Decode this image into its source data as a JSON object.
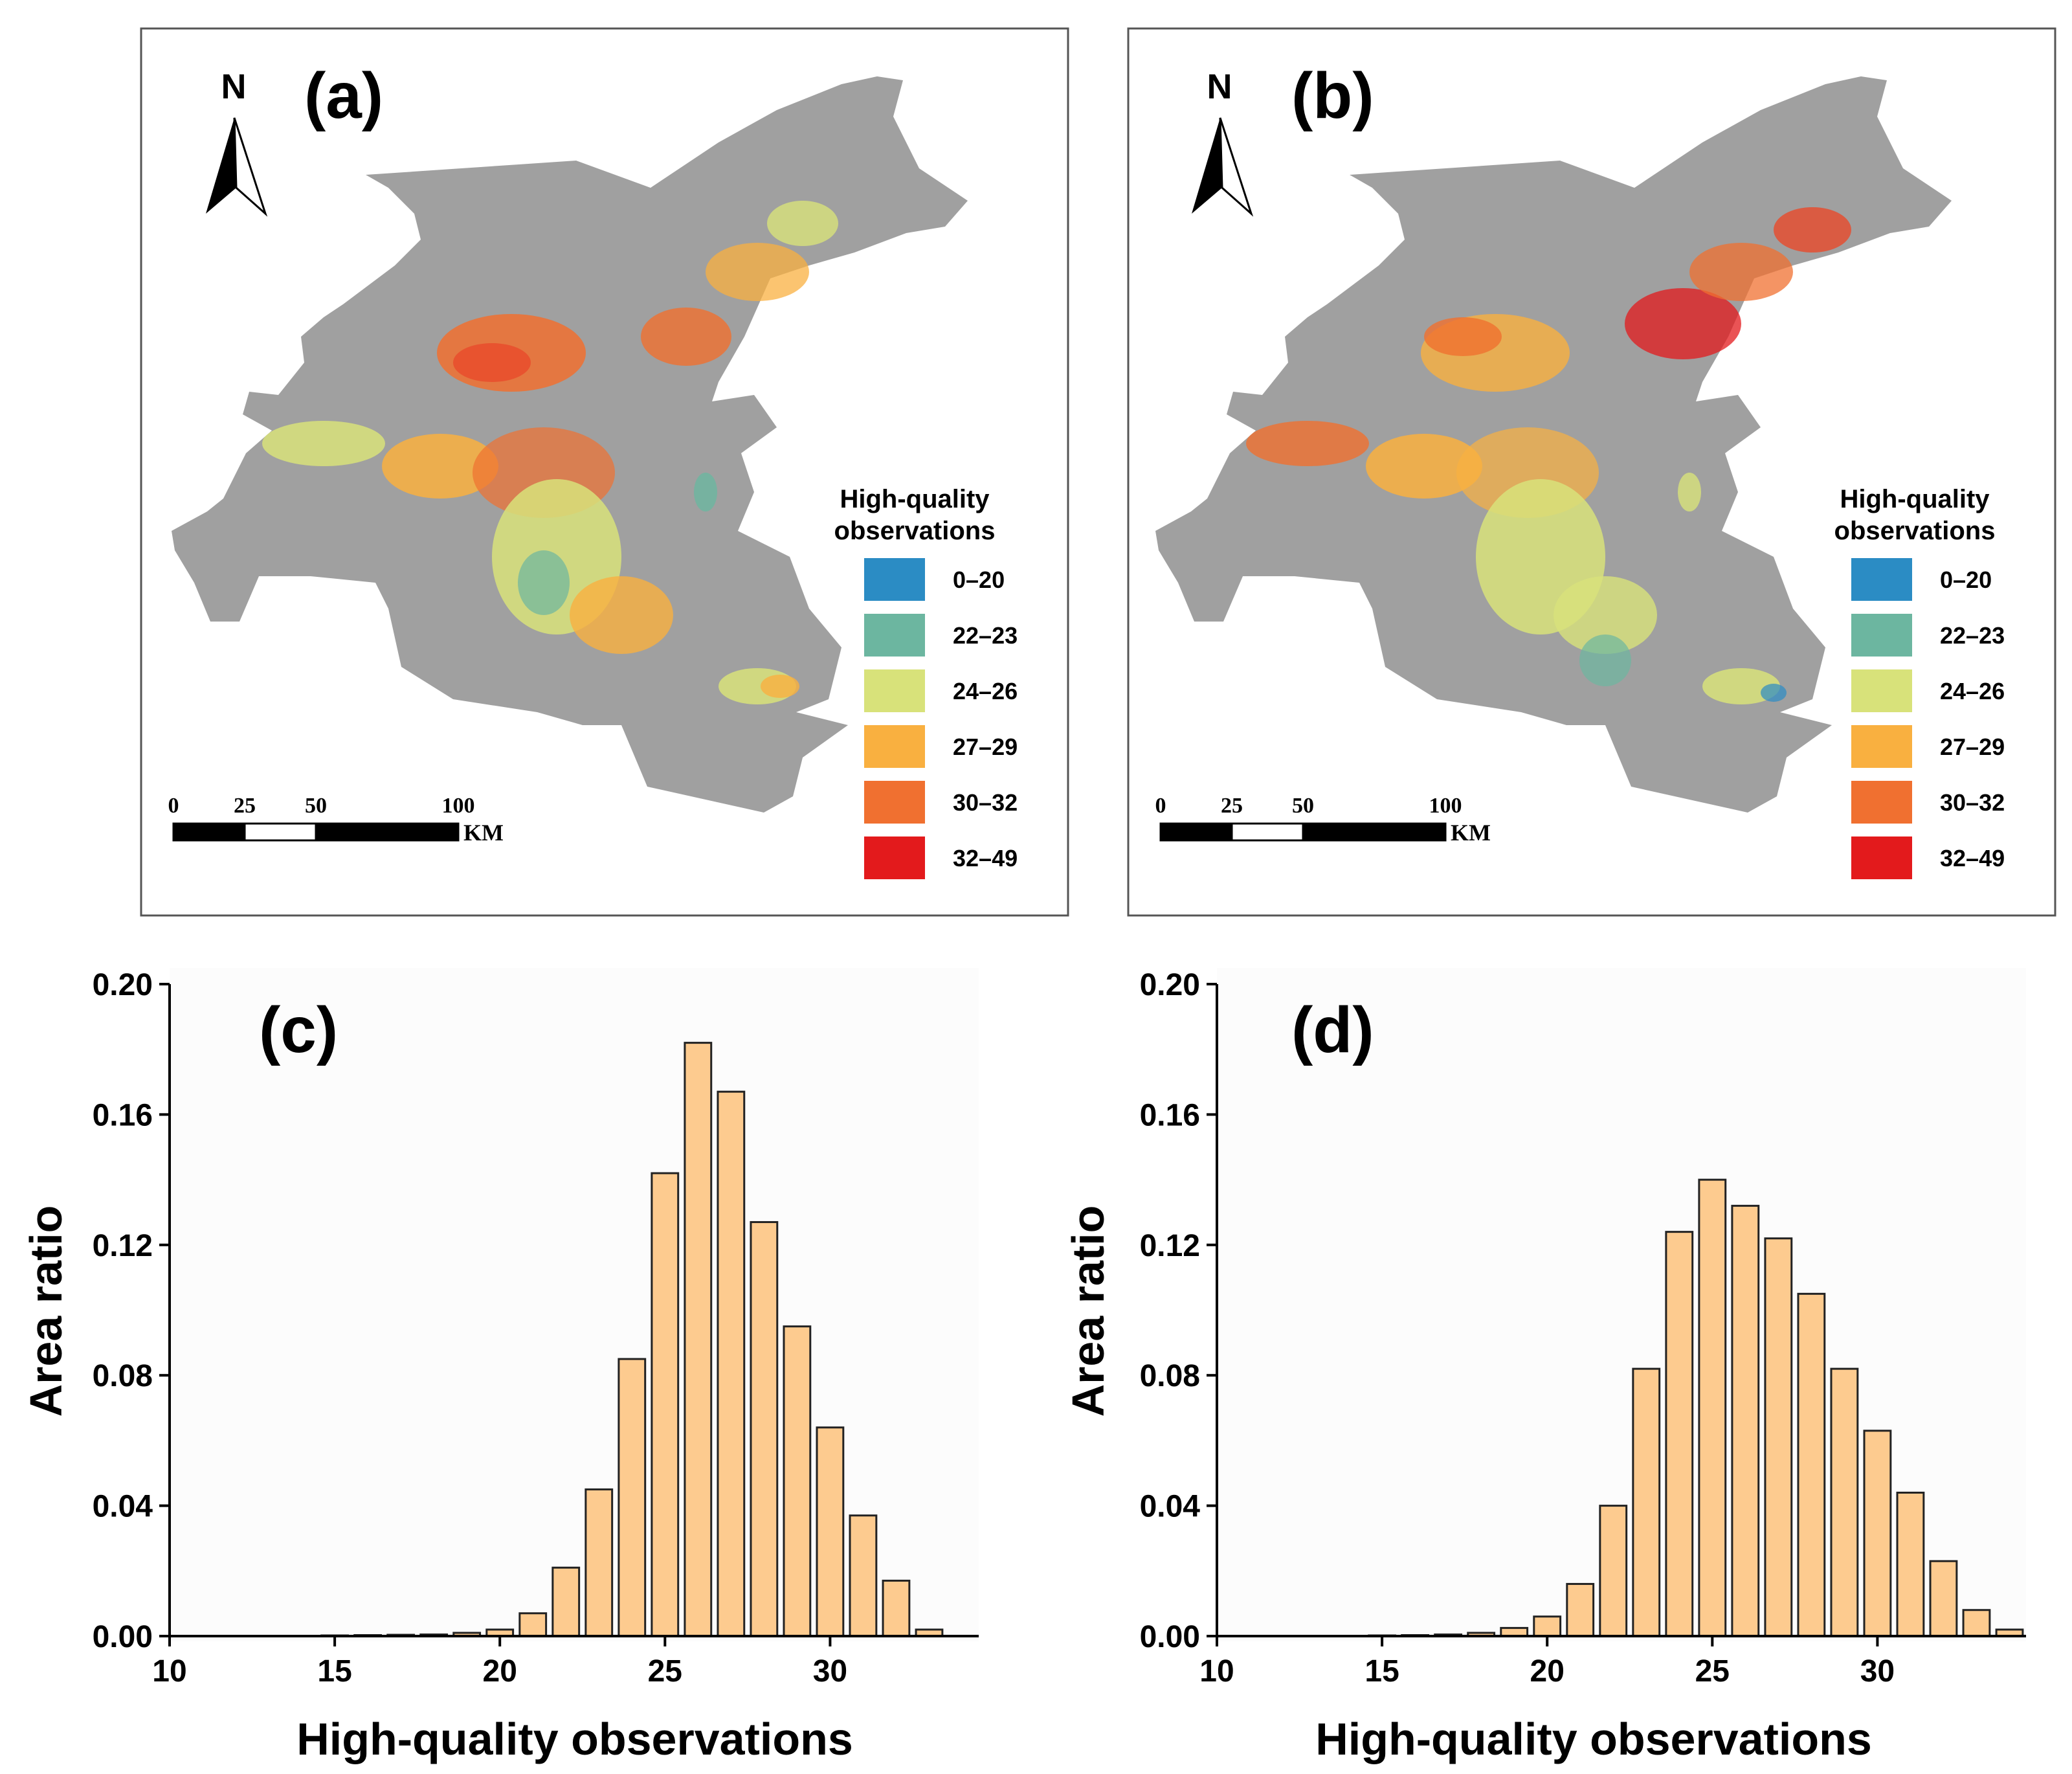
{
  "figure": {
    "panels": [
      "(a)",
      "(b)",
      "(c)",
      "(d)"
    ]
  },
  "maps": [
    {
      "panel_label": "(a)",
      "north_label": "N",
      "legend_title_line1": "High-quality",
      "legend_title_line2": "observations",
      "scale_ticks": [
        "0",
        "25",
        "50",
        "100"
      ],
      "scale_unit": "KM",
      "legend": [
        {
          "label": "0–20",
          "color": "#2b8cc4"
        },
        {
          "label": "22–23",
          "color": "#6cb6a0"
        },
        {
          "label": "24–26",
          "color": "#d8e27a"
        },
        {
          "label": "27–29",
          "color": "#f9b040"
        },
        {
          "label": "30–32",
          "color": "#f07030"
        },
        {
          "label": "32–49",
          "color": "#e31a1c"
        }
      ],
      "region_color": "#a0a0a0"
    },
    {
      "panel_label": "(b)",
      "north_label": "N",
      "legend_title_line1": "High-quality",
      "legend_title_line2": "observations",
      "scale_ticks": [
        "0",
        "25",
        "50",
        "100"
      ],
      "scale_unit": "KM",
      "legend": [
        {
          "label": "0–20",
          "color": "#2b8cc4"
        },
        {
          "label": "22–23",
          "color": "#6cb6a0"
        },
        {
          "label": "24–26",
          "color": "#d8e27a"
        },
        {
          "label": "27–29",
          "color": "#f9b040"
        },
        {
          "label": "30–32",
          "color": "#f07030"
        },
        {
          "label": "32–49",
          "color": "#e31a1c"
        }
      ],
      "region_color": "#a0a0a0"
    }
  ],
  "chart_data": [
    {
      "type": "bar",
      "panel_label": "(c)",
      "xlabel": "High-quality observations",
      "ylabel": "Area ratio",
      "xlim": [
        10,
        34.5
      ],
      "ylim": [
        0,
        0.2
      ],
      "xticks": [
        "10",
        "15",
        "20",
        "25",
        "30"
      ],
      "yticks": [
        "0.00",
        "0.04",
        "0.08",
        "0.12",
        "0.16",
        "0.20"
      ],
      "bar_color": "#fdcb8f",
      "x": [
        15,
        16,
        17,
        18,
        19,
        20,
        21,
        22,
        23,
        24,
        25,
        26,
        27,
        28,
        29,
        30,
        31,
        32,
        33
      ],
      "values": [
        0.0002,
        0.0003,
        0.0004,
        0.0005,
        0.001,
        0.002,
        0.007,
        0.021,
        0.045,
        0.085,
        0.142,
        0.182,
        0.167,
        0.127,
        0.095,
        0.064,
        0.037,
        0.017,
        0.002
      ]
    },
    {
      "type": "bar",
      "panel_label": "(d)",
      "xlabel": "High-quality observations",
      "ylabel": "Area ratio",
      "xlim": [
        10,
        34.5
      ],
      "ylim": [
        0,
        0.2
      ],
      "xticks": [
        "10",
        "15",
        "20",
        "25",
        "30"
      ],
      "yticks": [
        "0.00",
        "0.04",
        "0.08",
        "0.12",
        "0.16",
        "0.20"
      ],
      "bar_color": "#fdcb8f",
      "x": [
        15,
        16,
        17,
        18,
        19,
        20,
        21,
        22,
        23,
        24,
        25,
        26,
        27,
        28,
        29,
        30,
        31,
        32,
        33,
        34
      ],
      "values": [
        0.0002,
        0.0003,
        0.0005,
        0.001,
        0.0025,
        0.006,
        0.016,
        0.04,
        0.082,
        0.124,
        0.14,
        0.132,
        0.122,
        0.105,
        0.082,
        0.063,
        0.044,
        0.023,
        0.008,
        0.002
      ]
    }
  ]
}
